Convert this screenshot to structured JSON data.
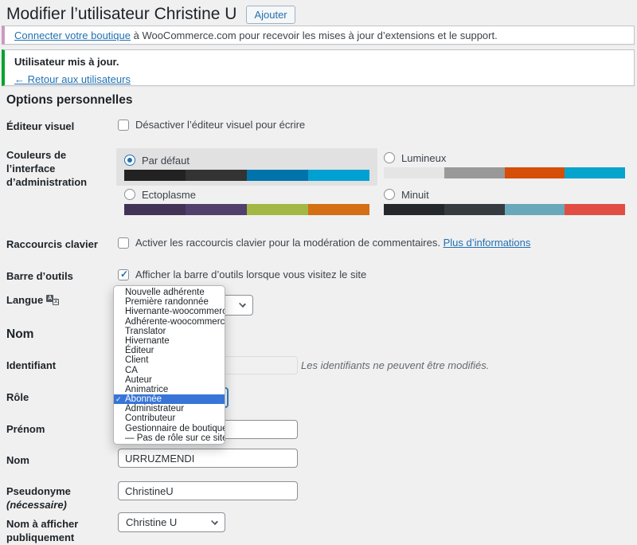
{
  "page": {
    "title": "Modifier l’utilisateur Christine U",
    "add_button": "Ajouter"
  },
  "notices": {
    "woocommerce": {
      "link": "Connecter votre boutique",
      "text": " à WooCommerce.com pour recevoir les mises à jour d’extensions et le support.",
      "border_color": "#cc99c2"
    },
    "success": {
      "message": "Utilisateur mis à jour.",
      "back_link": "← Retour aux utilisateurs",
      "border_color": "#00a32a"
    }
  },
  "sections": {
    "personal_options": "Options personnelles",
    "name": "Nom"
  },
  "icons": {
    "check": "✓",
    "lang_a": "A",
    "lang_kanji": "文"
  },
  "fields": {
    "visual_editor": {
      "label": "Éditeur visuel",
      "checkbox_label": "Désactiver l’éditeur visuel pour écrire",
      "checked": false
    },
    "admin_color": {
      "label_line1": "Couleurs de l’interface",
      "label_line2": "d’administration",
      "selected": "Par défaut",
      "schemes": [
        {
          "label": "Par défaut",
          "colors": [
            "#222222",
            "#333333",
            "#0073aa",
            "#00a0d2"
          ]
        },
        {
          "label": "Lumineux",
          "colors": [
            "#e5e5e5",
            "#999999",
            "#d64e07",
            "#04a4cc"
          ]
        },
        {
          "label": "Ectoplasme",
          "colors": [
            "#413256",
            "#523f6d",
            "#a3b745",
            "#d46f15"
          ]
        },
        {
          "label": "Minuit",
          "colors": [
            "#25282b",
            "#363b3f",
            "#69a8bb",
            "#e14d43"
          ]
        }
      ]
    },
    "keyboard_shortcuts": {
      "label": "Raccourcis clavier",
      "checkbox_label": "Activer les raccourcis clavier pour la modération de commentaires.",
      "link": "Plus d’informations",
      "checked": false
    },
    "toolbar": {
      "label": "Barre d’outils",
      "checkbox_label": "Afficher la barre d’outils lorsque vous visitez le site",
      "checked": true
    },
    "language": {
      "label": "Langue",
      "value": ""
    },
    "username": {
      "label": "Identifiant",
      "value": "",
      "description": "Les identifiants ne peuvent être modifiés."
    },
    "role": {
      "label": "Rôle",
      "selected_index": 11,
      "options": [
        "Nouvelle adhérente",
        "Première randonnée",
        "Hivernante-woocommerce",
        "Adhérente-woocommerce",
        "Translator",
        "Hivernante",
        "Éditeur",
        "Client",
        "CA",
        "Auteur",
        "Animatrice",
        "Abonnée",
        "Administrateur",
        "Contributeur",
        "Gestionnaire de boutique",
        "— Pas de rôle sur ce site —"
      ]
    },
    "first_name": {
      "label": "Prénom",
      "value": ""
    },
    "last_name": {
      "label": "Nom",
      "value": "URRUZMENDI"
    },
    "nickname": {
      "label": "Pseudonyme",
      "required_note": "(nécessaire)",
      "value": "ChristineU"
    },
    "display_name": {
      "label": "Nom à afficher publiquement",
      "value": "Christine U"
    }
  }
}
